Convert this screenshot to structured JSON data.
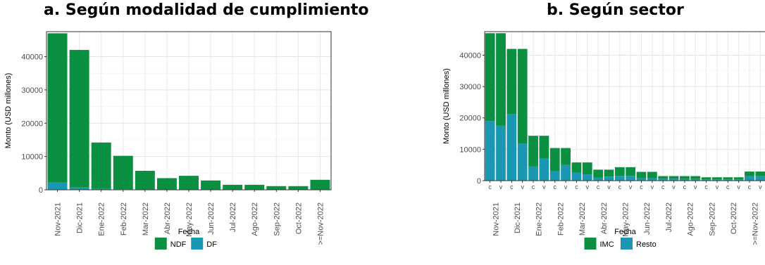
{
  "chart_data": [
    {
      "type": "bar",
      "stacked": true,
      "title": "a. Según modalidad de cumplimiento",
      "xlabel": "Fecha",
      "ylabel": "Monto (USD millones)",
      "ylim": [
        0,
        47500
      ],
      "yticks": [
        0,
        10000,
        20000,
        30000,
        40000
      ],
      "grid": true,
      "legend_position": "bottom",
      "categories": [
        "Nov-2021",
        "Dic-2021",
        "Ene-2022",
        "Feb-2022",
        "Mar-2022",
        "Abr-2022",
        "May-2022",
        "Jun-2022",
        "Jul-2022",
        "Ago-2022",
        "Sep-2022",
        "Oct-2022",
        ">=Nov-2022"
      ],
      "series": [
        {
          "name": "DF",
          "color": "#1a98b3",
          "values": [
            2200,
            700,
            300,
            200,
            100,
            100,
            100,
            50,
            50,
            50,
            30,
            30,
            100
          ]
        },
        {
          "name": "NDF",
          "color": "#0a9040",
          "values": [
            44800,
            41300,
            13900,
            10000,
            5600,
            3400,
            4100,
            2750,
            1450,
            1450,
            1070,
            1070,
            2900
          ]
        }
      ],
      "legend": [
        "NDF",
        "DF"
      ]
    },
    {
      "type": "bar",
      "stacked": true,
      "title": "b. Según sector",
      "xlabel": "Fecha",
      "ylabel": "Monto (USD millones)",
      "ylim": [
        0,
        47500
      ],
      "yticks": [
        0,
        10000,
        20000,
        30000,
        40000
      ],
      "grid": true,
      "legend_position": "bottom",
      "categories": [
        "Nov-2021",
        "Dic-2021",
        "Ene-2022",
        "Feb-2022",
        "Mar-2022",
        "Abr-2022",
        "May-2022",
        "Jun-2022",
        "Jul-2022",
        "Ago-2022",
        "Sep-2022",
        "Oct-2022",
        ">=Nov-2022"
      ],
      "subcategories": [
        "c",
        "v"
      ],
      "series": [
        {
          "name": "Resto",
          "color": "#1a98b3",
          "values": [
            [
              19000,
              17500
            ],
            [
              21200,
              11800
            ],
            [
              4500,
              7000
            ],
            [
              3000,
              5000
            ],
            [
              2500,
              2000
            ],
            [
              1000,
              1300
            ],
            [
              1500,
              1500
            ],
            [
              800,
              800
            ],
            [
              600,
              600
            ],
            [
              500,
              500
            ],
            [
              400,
              400
            ],
            [
              400,
              400
            ],
            [
              1400,
              1400
            ]
          ]
        },
        {
          "name": "IMC",
          "color": "#0a9040",
          "values": [
            [
              28000,
              29500
            ],
            [
              20800,
              30200
            ],
            [
              9800,
              7300
            ],
            [
              7400,
              5400
            ],
            [
              3300,
              3800
            ],
            [
              2500,
              2200
            ],
            [
              2800,
              2800
            ],
            [
              2000,
              2000
            ],
            [
              850,
              850
            ],
            [
              950,
              950
            ],
            [
              670,
              670
            ],
            [
              670,
              670
            ],
            [
              1500,
              1500
            ]
          ]
        }
      ],
      "legend": [
        "IMC",
        "Resto"
      ]
    }
  ]
}
